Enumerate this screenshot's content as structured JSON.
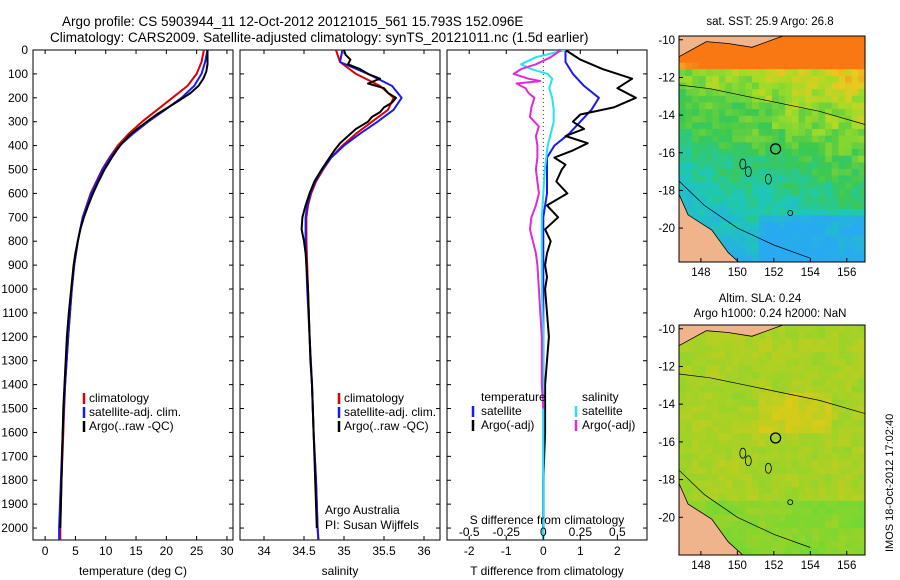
{
  "title_line1": "Argo profile: CS 5903944_11 12-Oct-2012 20121015_561 15.793S 152.096E",
  "title_line2": "Climatology: CARS2009. Satellite-adjusted climatology: synTS_20121011.nc (1.5d earlier)",
  "side_stamp": "IMOS 18-Oct-2012 17:02:40",
  "colors": {
    "climatology": "#dd0000",
    "satellite": "#1a1aee",
    "argo": "#000000",
    "satellite_salinity": "#22e5ee",
    "argo_salinity": "#e02ad8",
    "land": "#f0b48c"
  },
  "depth_ticks": [
    0,
    100,
    200,
    300,
    400,
    500,
    600,
    700,
    800,
    900,
    1000,
    1100,
    1200,
    1300,
    1400,
    1500,
    1600,
    1700,
    1800,
    1900,
    2000
  ],
  "map_sst_title": "sat. SST: 25.9 Argo: 26.8",
  "map_sla_title1": "Altim. SLA: 0.24",
  "map_sla_title2": "Argo h1000: 0.24 h2000: NaN",
  "map_lat_ticks": [
    "-10",
    "-12",
    "-14",
    "-16",
    "-18",
    "-20"
  ],
  "map_lon_ticks": [
    "148",
    "150",
    "152",
    "154",
    "156"
  ],
  "chart_data": [
    {
      "type": "line",
      "xlabel": "temperature (deg C)",
      "ylabel": "",
      "xlim": [
        -2,
        31
      ],
      "ylim": [
        0,
        2050
      ],
      "y_inverted": true,
      "x_ticks": [
        "0",
        "5",
        "10",
        "15",
        "20",
        "25",
        "30"
      ],
      "legend_location": "lower-center",
      "legend_entries": [
        "climatology",
        "satellite-adj. clim.",
        "Argo(..raw -QC)"
      ],
      "series": [
        {
          "name": "climatology",
          "depth": [
            0,
            50,
            100,
            150,
            200,
            250,
            300,
            350,
            400,
            450,
            500,
            600,
            700,
            800,
            900,
            1000,
            1200,
            1400,
            1600,
            1800,
            2000,
            2050
          ],
          "values": [
            26.2,
            25.8,
            25.0,
            23.5,
            21.0,
            18.5,
            16.0,
            13.8,
            12.0,
            10.6,
            9.4,
            7.5,
            6.2,
            5.4,
            4.8,
            4.4,
            3.8,
            3.3,
            3.0,
            2.7,
            2.5,
            2.5
          ]
        },
        {
          "name": "satellite-adj. clim.",
          "depth": [
            0,
            50,
            100,
            150,
            200,
            250,
            300,
            350,
            400,
            450,
            500,
            600,
            700,
            800,
            900,
            1000,
            1200,
            1400,
            1600,
            1800,
            2000,
            2050
          ],
          "values": [
            26.8,
            26.4,
            25.8,
            24.6,
            22.5,
            19.8,
            17.0,
            14.5,
            12.3,
            10.7,
            9.5,
            7.6,
            6.2,
            5.4,
            4.8,
            4.4,
            3.8,
            3.3,
            2.9,
            2.6,
            2.3,
            2.3
          ]
        },
        {
          "name": "Argo(..raw -QC)",
          "depth": [
            0,
            30,
            60,
            90,
            120,
            150,
            180,
            210,
            240,
            270,
            300,
            330,
            360,
            390,
            420,
            450,
            480,
            500,
            550,
            600,
            650,
            700,
            750,
            800,
            850,
            900,
            950,
            1000,
            1100,
            1200,
            1300,
            1400,
            1500,
            1600,
            1700,
            1800,
            1900,
            2000
          ],
          "values": [
            26.8,
            26.8,
            26.8,
            26.6,
            26.1,
            25.3,
            24.0,
            22.2,
            20.3,
            18.4,
            16.8,
            15.2,
            13.8,
            12.7,
            11.8,
            11.0,
            10.3,
            9.8,
            8.8,
            7.9,
            7.1,
            6.4,
            5.8,
            5.4,
            5.0,
            4.7,
            4.5,
            4.3,
            3.9,
            3.6,
            3.4,
            3.2,
            3.0,
            2.9,
            2.8,
            2.7,
            2.6,
            2.5
          ]
        }
      ]
    },
    {
      "type": "line",
      "xlabel": "salinity",
      "ylabel": "",
      "xlim": [
        33.7,
        36.2
      ],
      "ylim": [
        0,
        2050
      ],
      "y_inverted": true,
      "x_ticks": [
        "34",
        "34.5",
        "35",
        "35.5",
        "36"
      ],
      "legend_location": "lower-center",
      "legend_entries": [
        "climatology",
        "satellite-adj. clim.",
        "Argo(..raw -QC)"
      ],
      "annotation_lines": [
        "Argo Australia",
        "PI: Susan Wijffels"
      ],
      "series": [
        {
          "name": "climatology",
          "depth": [
            0,
            50,
            100,
            150,
            200,
            250,
            300,
            350,
            400,
            450,
            500,
            550,
            600,
            650,
            700,
            800,
            900,
            1000,
            1200,
            1400,
            1600,
            1800,
            2000,
            2050
          ],
          "values": [
            34.9,
            34.95,
            35.15,
            35.45,
            35.62,
            35.55,
            35.35,
            35.15,
            34.98,
            34.84,
            34.74,
            34.65,
            34.59,
            34.55,
            34.53,
            34.53,
            34.54,
            34.55,
            34.57,
            34.6,
            34.62,
            34.65,
            34.67,
            34.68
          ]
        },
        {
          "name": "satellite-adj. clim.",
          "depth": [
            0,
            50,
            100,
            150,
            200,
            250,
            300,
            350,
            400,
            450,
            500,
            550,
            600,
            650,
            700,
            800,
            900,
            1000,
            1200,
            1400,
            1600,
            1800,
            2000,
            2050
          ],
          "values": [
            34.98,
            34.95,
            35.3,
            35.6,
            35.72,
            35.62,
            35.42,
            35.2,
            35.0,
            34.84,
            34.73,
            34.64,
            34.58,
            34.54,
            34.52,
            34.52,
            34.53,
            34.54,
            34.57,
            34.6,
            34.62,
            34.65,
            34.67,
            34.68
          ]
        },
        {
          "name": "Argo(..raw -QC)",
          "depth": [
            0,
            20,
            40,
            60,
            80,
            100,
            120,
            140,
            160,
            180,
            200,
            220,
            240,
            260,
            280,
            300,
            330,
            360,
            390,
            420,
            450,
            500,
            550,
            600,
            650,
            700,
            750,
            800,
            850,
            900,
            1000,
            1100,
            1200,
            1300,
            1400,
            1500,
            1600,
            1700,
            1800,
            1900,
            2000
          ],
          "values": [
            35.0,
            35.02,
            35.08,
            35.05,
            35.2,
            35.3,
            35.45,
            35.3,
            35.5,
            35.55,
            35.65,
            35.6,
            35.5,
            35.45,
            35.35,
            35.3,
            35.15,
            35.05,
            34.95,
            34.88,
            34.82,
            34.72,
            34.63,
            34.57,
            34.52,
            34.48,
            34.47,
            34.5,
            34.52,
            34.53,
            34.55,
            34.56,
            34.57,
            34.58,
            34.6,
            34.61,
            34.62,
            34.63,
            34.64,
            34.65,
            34.66
          ]
        }
      ]
    },
    {
      "type": "line",
      "xlabel": "T difference from climatology",
      "x2label": "S difference from climatology",
      "ylabel": "",
      "xlim": [
        -2.6,
        2.8
      ],
      "x2lim": [
        -0.65,
        0.7
      ],
      "ylim": [
        0,
        2050
      ],
      "y_inverted": true,
      "x_ticks": [
        "-2",
        "-1",
        "0",
        "1",
        "2"
      ],
      "x2_ticks": [
        "-0.5",
        "-0.25",
        "0",
        "0.25",
        "0.5"
      ],
      "zero_line": true,
      "legend_location": "lower-center",
      "legend_groups": [
        {
          "heading": "temperature",
          "entries": [
            "satellite",
            "Argo(-adj)"
          ]
        },
        {
          "heading": "salinity",
          "entries": [
            "satellite",
            "Argo(-adj)"
          ]
        }
      ],
      "series": [
        {
          "name": "temperature satellite",
          "variable": "T",
          "depth": [
            0,
            50,
            100,
            150,
            200,
            250,
            300,
            350,
            400,
            450,
            500,
            600,
            700,
            800,
            900,
            1000,
            1200,
            1400,
            1600,
            1800,
            2000,
            2050
          ],
          "values": [
            0.6,
            0.6,
            0.8,
            1.1,
            1.5,
            1.3,
            1.0,
            0.7,
            0.3,
            0.1,
            0.1,
            0.1,
            0.0,
            0.0,
            0.0,
            0.0,
            0.0,
            0.0,
            0.0,
            0.0,
            0.0,
            0.0
          ]
        },
        {
          "name": "temperature Argo(-adj)",
          "variable": "T",
          "depth": [
            0,
            40,
            80,
            120,
            160,
            200,
            240,
            270,
            300,
            330,
            360,
            390,
            420,
            450,
            480,
            500,
            550,
            600,
            650,
            700,
            750,
            800,
            850,
            900,
            950,
            1000,
            1100,
            1200,
            1300,
            1400,
            1500,
            1600,
            1800,
            2000
          ],
          "values": [
            0.6,
            1.0,
            1.6,
            2.4,
            2.0,
            2.5,
            1.9,
            1.0,
            0.8,
            1.1,
            0.6,
            1.2,
            0.8,
            0.3,
            0.6,
            0.5,
            0.35,
            0.65,
            0.1,
            0.4,
            0.05,
            0.2,
            0.1,
            0.05,
            0.1,
            0.05,
            0.1,
            0.15,
            0.1,
            0.05,
            0.05,
            0.05,
            0.0,
            0.0
          ]
        },
        {
          "name": "salinity satellite",
          "variable": "S",
          "depth": [
            0,
            30,
            60,
            80,
            100,
            120,
            140,
            160,
            200,
            250,
            300,
            350,
            400,
            450,
            500,
            600,
            700,
            800,
            900,
            1000,
            1200,
            1400,
            1600,
            1800,
            2000,
            2050
          ],
          "values": [
            0.15,
            -0.05,
            -0.15,
            -0.08,
            0.03,
            0.06,
            0.05,
            0.04,
            0.06,
            0.07,
            0.07,
            0.05,
            0.03,
            0.02,
            0.01,
            0.0,
            -0.01,
            -0.01,
            -0.01,
            -0.01,
            0.0,
            0.0,
            0.0,
            0.0,
            0.0,
            0.0
          ]
        },
        {
          "name": "salinity Argo(-adj)",
          "variable": "S",
          "depth": [
            0,
            30,
            60,
            80,
            100,
            120,
            130,
            140,
            160,
            180,
            200,
            240,
            280,
            320,
            360,
            400,
            450,
            500,
            550,
            600,
            650,
            700,
            750,
            800,
            850,
            900,
            1000,
            1100,
            1200,
            1300,
            1400,
            1500
          ],
          "values": [
            0.12,
            0.05,
            -0.05,
            -0.15,
            -0.2,
            -0.1,
            -0.02,
            -0.18,
            -0.12,
            -0.1,
            -0.06,
            -0.08,
            -0.09,
            -0.03,
            -0.05,
            -0.04,
            -0.04,
            -0.05,
            -0.04,
            -0.03,
            -0.05,
            -0.08,
            -0.09,
            -0.07,
            -0.05,
            -0.04,
            -0.03,
            -0.02,
            -0.01,
            -0.01,
            -0.01,
            0.0
          ]
        }
      ]
    }
  ]
}
